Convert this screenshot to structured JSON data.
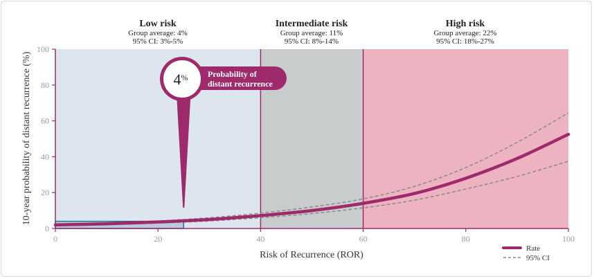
{
  "colors": {
    "low_band": "#dde6ee",
    "mid_band": "#c9cccd",
    "high_band": "#edb3c1",
    "accent": "#9e2a6b",
    "ci": "#8a8a8a",
    "axis_text": "#9a9a9a",
    "highlight": "#1f6f9a"
  },
  "groups": [
    {
      "title": "Low risk",
      "average": "Group average: 4%",
      "ci": "95% CI: 3%-5%"
    },
    {
      "title": "Intermediate risk",
      "average": "Group average: 11%",
      "ci": "95% CI: 8%-14%"
    },
    {
      "title": "High risk",
      "average": "Group average: 22%",
      "ci": "95% CI: 18%-27%"
    }
  ],
  "callout": {
    "value": "4",
    "unit": "%",
    "line1": "Probability of",
    "line2": "distant recurrence",
    "at_ror": 25
  },
  "chart_data": {
    "type": "line",
    "xlabel": "Risk of Recurrence (ROR)",
    "ylabel": "10-year probability of distant recurrence (%)",
    "xlim": [
      0,
      100
    ],
    "ylim": [
      0,
      100
    ],
    "xticks": [
      0,
      20,
      40,
      60,
      80,
      100
    ],
    "yticks": [
      0,
      20,
      40,
      60,
      80,
      100
    ],
    "bands": [
      {
        "group": "Low risk",
        "from": 0,
        "to": 40
      },
      {
        "group": "Intermediate risk",
        "from": 40,
        "to": 60
      },
      {
        "group": "High risk",
        "from": 60,
        "to": 100
      }
    ],
    "highlight_point": {
      "x": 25,
      "y": 4
    },
    "series": [
      {
        "name": "Rate",
        "style": "solid",
        "x": [
          0,
          10,
          20,
          30,
          40,
          50,
          60,
          70,
          80,
          90,
          100
        ],
        "y": [
          2,
          2.6,
          3.6,
          5,
          7.2,
          10,
          14,
          19.5,
          28,
          39,
          52.5
        ]
      },
      {
        "name": "95% CI",
        "style": "dashed",
        "x": [
          0,
          10,
          20,
          30,
          40,
          50,
          60,
          70,
          80,
          90,
          100
        ],
        "y": [
          2.5,
          3.1,
          4.2,
          6,
          8.6,
          12,
          16.5,
          23.5,
          34,
          48,
          64.5
        ]
      },
      {
        "name": "95% CI lower",
        "style": "dashed",
        "x": [
          0,
          10,
          20,
          30,
          40,
          50,
          60,
          70,
          80,
          90,
          100
        ],
        "y": [
          1.5,
          2.1,
          3,
          4.2,
          6,
          8.3,
          11.5,
          15.8,
          22,
          29,
          37.5
        ]
      }
    ],
    "legend": {
      "position": "bottom-right",
      "entries": [
        "Rate",
        "95% CI"
      ]
    }
  }
}
